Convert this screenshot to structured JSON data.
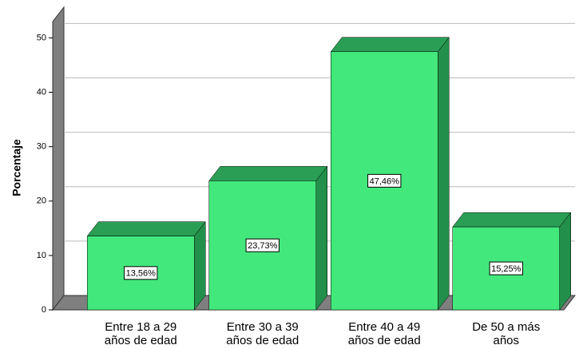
{
  "chart_data": {
    "type": "bar3d",
    "y_label": "Porcentaje",
    "categories": [
      [
        "Entre 18 a 29",
        "años de edad"
      ],
      [
        "Entre 30 a 39",
        "años de edad"
      ],
      [
        "Entre 40 a 49",
        "años de edad"
      ],
      [
        "De 50 a más",
        "años"
      ]
    ],
    "values": [
      13.56,
      23.73,
      47.46,
      15.25
    ],
    "value_labels": [
      "13,56%",
      "23,73%",
      "47,46%",
      "15,25%"
    ],
    "color": "#42e87c",
    "ylim": [
      0,
      53
    ],
    "yticks": [
      0,
      10,
      20,
      30,
      40,
      50
    ],
    "grid": true
  }
}
